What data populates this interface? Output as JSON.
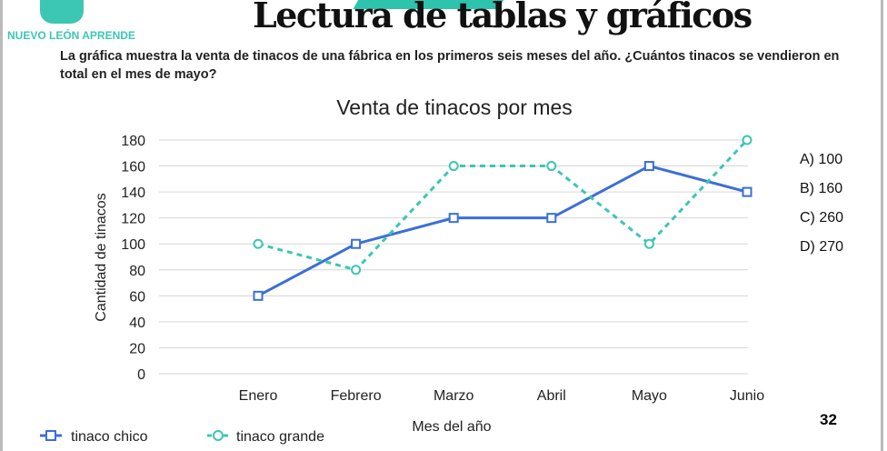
{
  "header": {
    "brand": "NUEVO LEÓN APRENDE",
    "title": "Lectura de tablas y gráficos"
  },
  "question": "La gráfica muestra la venta de tinacos de una fábrica en los primeros seis meses del año. ¿Cuántos tinacos se vendieron en total en el mes de mayo?",
  "answers": [
    "A) 100",
    "B)  160",
    "C) 260",
    "D) 270"
  ],
  "page_number": "32",
  "colors": {
    "chico": "#3a6fd8",
    "grande": "#3cc6b4"
  },
  "chart_data": {
    "type": "line",
    "title": "Venta de tinacos por mes",
    "xlabel": "Mes del año",
    "ylabel": "Cantidad de tinacos",
    "categories": [
      "Enero",
      "Febrero",
      "Marzo",
      "Abril",
      "Mayo",
      "Junio"
    ],
    "ylim": [
      0,
      180
    ],
    "yticks": [
      "0",
      "20",
      "40",
      "60",
      "80",
      "100",
      "120",
      "140",
      "160",
      "180"
    ],
    "grid": true,
    "legend": "bottom-left",
    "series": [
      {
        "name": "tinaco chico",
        "values": [
          60,
          100,
          120,
          120,
          160,
          140
        ]
      },
      {
        "name": "tinaco grande",
        "values": [
          100,
          80,
          160,
          160,
          100,
          180
        ]
      }
    ]
  }
}
